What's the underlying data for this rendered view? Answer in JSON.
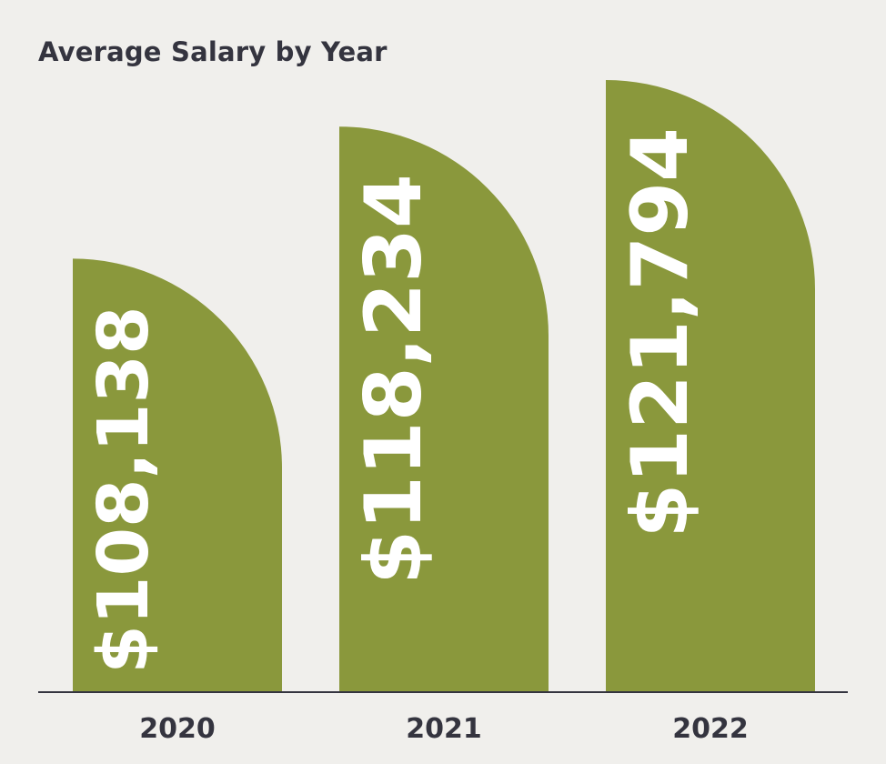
{
  "chart_data": {
    "type": "bar",
    "title": "Average Salary by Year",
    "categories": [
      "2020",
      "2021",
      "2022"
    ],
    "values": [
      108138,
      118234,
      121794
    ],
    "data_labels": [
      "$108,138",
      "$118,234",
      "$121,794"
    ],
    "xlabel": "",
    "ylabel": "",
    "ylim": [
      0,
      121794
    ],
    "grid": false,
    "legend": "none",
    "bar_shape": "quarter-rounded top right",
    "colors": {
      "bar": "#8a983c",
      "background": "#f0efec",
      "text": "#34343f",
      "bar_label": "#ffffff",
      "axis": "#34343f"
    }
  }
}
